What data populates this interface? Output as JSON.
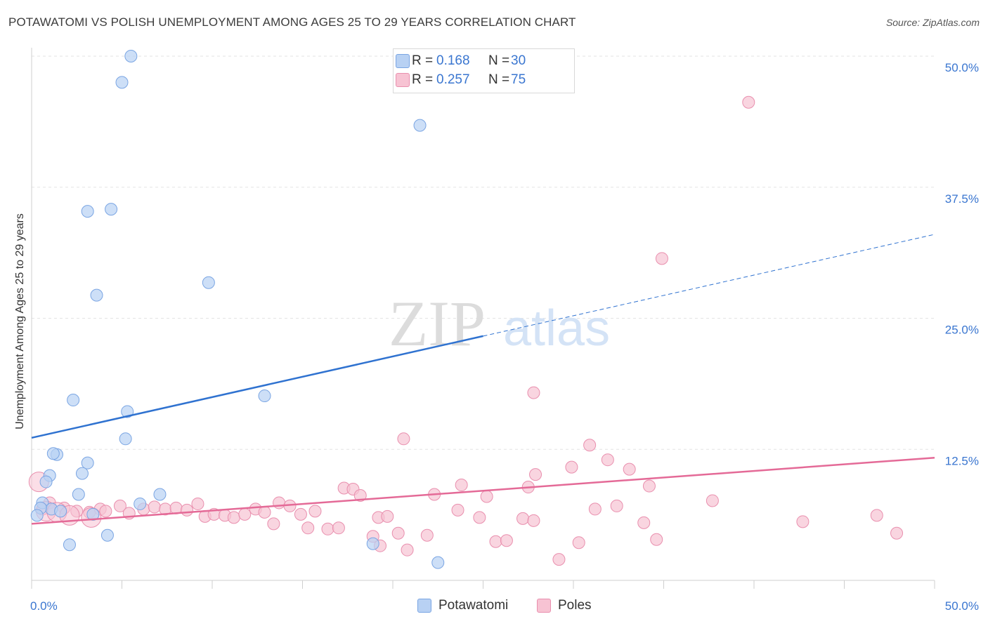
{
  "title": "POTAWATOMI VS POLISH UNEMPLOYMENT AMONG AGES 25 TO 29 YEARS CORRELATION CHART",
  "source": "Source: ZipAtlas.com",
  "watermark": {
    "zip": "ZIP",
    "atlas": "atlas"
  },
  "colors": {
    "blue_fill": "#b8d1f3",
    "blue_stroke": "#7aa5e3",
    "blue_line": "#2f72d0",
    "pink_fill": "#f7c3d3",
    "pink_stroke": "#e98fae",
    "pink_line": "#e46a97",
    "axis_text": "#3a76d0",
    "grid": "#e3e3e3"
  },
  "legend_top": [
    {
      "r_label": "R =",
      "r_value": "0.168",
      "n_label": "N =",
      "n_value": "30"
    },
    {
      "r_label": "R =",
      "r_value": "0.257",
      "n_label": "N =",
      "n_value": "75"
    }
  ],
  "chart_data": {
    "type": "scatter",
    "title": "POTAWATOMI VS POLISH UNEMPLOYMENT AMONG AGES 25 TO 29 YEARS CORRELATION CHART",
    "xlabel": "",
    "ylabel": "Unemployment Among Ages 25 to 29 years",
    "xlim": [
      0,
      50
    ],
    "ylim": [
      0,
      50
    ],
    "x_tick_labels": [
      "0.0%",
      "50.0%"
    ],
    "y_tick_labels": [
      "50.0%",
      "37.5%",
      "25.0%",
      "12.5%"
    ],
    "y_ticks": [
      50,
      37.5,
      25,
      12.5
    ],
    "grid": true,
    "legend_position": "bottom-center",
    "series": [
      {
        "name": "Potawatomi",
        "color": "#b8d1f3",
        "r": 0.168,
        "n": 30,
        "trend": {
          "x0": 0,
          "y0": 13.6,
          "x1": 25,
          "y1": 23.3,
          "dashed_to_x": 50,
          "dashed_to_y": 33
        },
        "points": [
          [
            5.5,
            50.0
          ],
          [
            5.0,
            47.5
          ],
          [
            21.5,
            43.4
          ],
          [
            3.1,
            35.2
          ],
          [
            4.4,
            35.4
          ],
          [
            9.8,
            28.4
          ],
          [
            3.6,
            27.2
          ],
          [
            2.3,
            17.2
          ],
          [
            12.9,
            17.6
          ],
          [
            5.3,
            16.1
          ],
          [
            5.2,
            13.5
          ],
          [
            1.4,
            12.0
          ],
          [
            1.2,
            12.1
          ],
          [
            3.1,
            11.2
          ],
          [
            2.8,
            10.2
          ],
          [
            1.0,
            10.0
          ],
          [
            0.8,
            9.4
          ],
          [
            2.6,
            8.2
          ],
          [
            7.1,
            8.2
          ],
          [
            0.6,
            7.4
          ],
          [
            6.0,
            7.3
          ],
          [
            1.1,
            6.8
          ],
          [
            0.5,
            6.9
          ],
          [
            1.6,
            6.6
          ],
          [
            0.3,
            6.2
          ],
          [
            3.4,
            6.3
          ],
          [
            4.2,
            4.3
          ],
          [
            2.1,
            3.4
          ],
          [
            18.9,
            3.5
          ],
          [
            22.5,
            1.7
          ]
        ]
      },
      {
        "name": "Poles",
        "color": "#f7c3d3",
        "r": 0.257,
        "n": 75,
        "trend": {
          "x0": 0,
          "y0": 5.4,
          "x1": 50,
          "y1": 11.7
        },
        "points": [
          [
            39.7,
            45.6
          ],
          [
            34.9,
            30.7
          ],
          [
            27.8,
            17.9
          ],
          [
            20.6,
            13.5
          ],
          [
            30.9,
            12.9
          ],
          [
            31.9,
            11.5
          ],
          [
            29.9,
            10.8
          ],
          [
            33.1,
            10.6
          ],
          [
            27.9,
            10.1
          ],
          [
            23.8,
            9.1
          ],
          [
            34.2,
            9.0
          ],
          [
            17.3,
            8.8
          ],
          [
            17.8,
            8.7
          ],
          [
            18.2,
            8.1
          ],
          [
            22.3,
            8.2
          ],
          [
            25.2,
            8.0
          ],
          [
            27.5,
            8.9
          ],
          [
            37.7,
            7.6
          ],
          [
            1.0,
            7.4
          ],
          [
            0.6,
            6.8
          ],
          [
            1.8,
            6.9
          ],
          [
            2.5,
            6.6
          ],
          [
            3.2,
            6.5
          ],
          [
            3.8,
            6.8
          ],
          [
            4.1,
            6.6
          ],
          [
            4.9,
            7.1
          ],
          [
            5.4,
            6.4
          ],
          [
            6.2,
            6.8
          ],
          [
            6.8,
            7.0
          ],
          [
            7.4,
            6.8
          ],
          [
            8.0,
            6.9
          ],
          [
            8.6,
            6.7
          ],
          [
            9.2,
            7.3
          ],
          [
            9.6,
            6.1
          ],
          [
            10.1,
            6.3
          ],
          [
            10.7,
            6.2
          ],
          [
            11.2,
            6.0
          ],
          [
            11.8,
            6.3
          ],
          [
            12.4,
            6.8
          ],
          [
            12.9,
            6.5
          ],
          [
            13.4,
            5.4
          ],
          [
            13.7,
            7.4
          ],
          [
            14.3,
            7.1
          ],
          [
            14.9,
            6.3
          ],
          [
            15.7,
            6.6
          ],
          [
            15.3,
            5.0
          ],
          [
            16.4,
            4.9
          ],
          [
            17.0,
            5.0
          ],
          [
            18.9,
            4.2
          ],
          [
            19.2,
            6.0
          ],
          [
            19.7,
            6.1
          ],
          [
            19.3,
            3.3
          ],
          [
            20.3,
            4.5
          ],
          [
            20.8,
            2.9
          ],
          [
            21.9,
            4.3
          ],
          [
            23.6,
            6.7
          ],
          [
            24.8,
            6.0
          ],
          [
            25.7,
            3.7
          ],
          [
            26.3,
            3.8
          ],
          [
            27.2,
            5.9
          ],
          [
            27.8,
            5.7
          ],
          [
            29.2,
            2.0
          ],
          [
            30.3,
            3.6
          ],
          [
            31.2,
            6.8
          ],
          [
            32.4,
            7.1
          ],
          [
            33.9,
            5.5
          ],
          [
            34.6,
            3.9
          ],
          [
            42.7,
            5.6
          ],
          [
            46.8,
            6.2
          ],
          [
            47.9,
            4.5
          ],
          [
            0.4,
            9.4
          ],
          [
            0.8,
            6.6
          ],
          [
            1.4,
            6.5
          ],
          [
            2.1,
            6.2
          ],
          [
            3.3,
            6.0
          ]
        ]
      }
    ]
  },
  "legend_bottom": [
    "Potawatomi",
    "Poles"
  ]
}
